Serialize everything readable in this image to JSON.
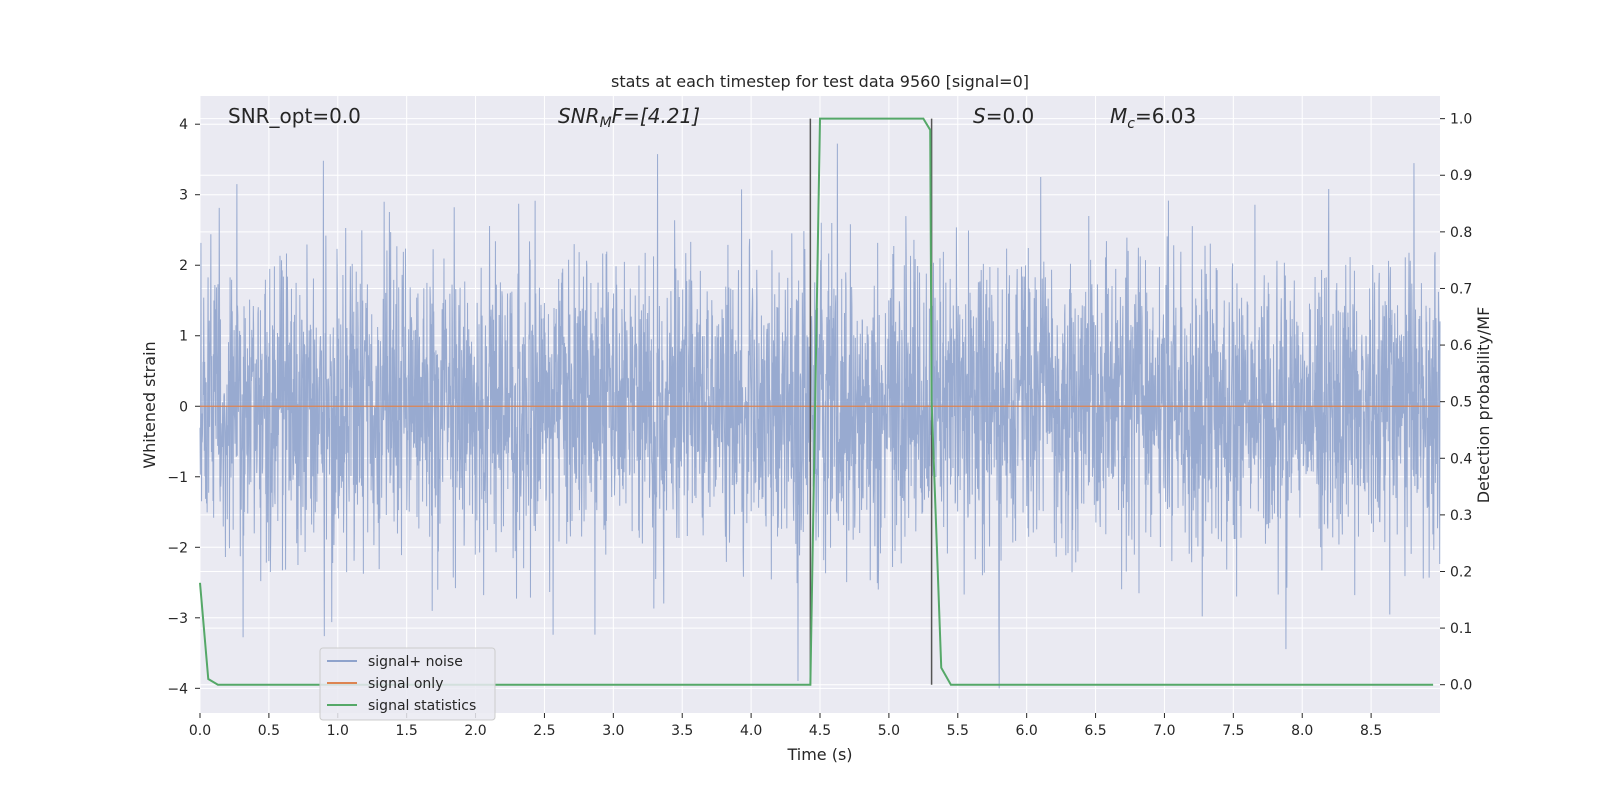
{
  "chart_data": {
    "type": "line",
    "title": "stats at each timestep for test data 9560 [signal=0]",
    "xlabel": "Time (s)",
    "ylabel": "Whitened strain",
    "ylabel_right": "Detection probability/MF",
    "xlim": [
      0.0,
      9.0
    ],
    "ylim": [
      -4.35,
      4.4
    ],
    "ylim_right": [
      -0.05,
      1.04
    ],
    "x_ticks": [
      "0.0",
      "0.5",
      "1.0",
      "1.5",
      "2.0",
      "2.5",
      "3.0",
      "3.5",
      "4.0",
      "4.5",
      "5.0",
      "5.5",
      "6.0",
      "6.5",
      "7.0",
      "7.5",
      "8.0",
      "8.5"
    ],
    "y_ticks": [
      "4",
      "3",
      "2",
      "1",
      "0",
      "−1",
      "−2",
      "−3",
      "−4"
    ],
    "y_right_ticks": [
      "1.0",
      "0.9",
      "0.8",
      "0.7",
      "0.6",
      "0.5",
      "0.4",
      "0.3",
      "0.2",
      "0.1",
      "0.0"
    ],
    "grid": true,
    "legend_position": "lower-left",
    "annotations": {
      "snr_opt": "SNR_opt=0.0",
      "snr_mf_italic": "SNR",
      "snr_mf_sub": "M",
      "snr_mf_rest": "F=[4.21]",
      "s_italic": "S",
      "s_rest": "=0.0",
      "mc_italic": "M",
      "mc_sub": "c",
      "mc_rest": "=6.03"
    },
    "vertical_lines_x": [
      4.43,
      5.31
    ],
    "series": [
      {
        "name": "signal+ noise",
        "color": "#8fa3cc",
        "axis": "left",
        "envelope_abs_max": 4.0
      },
      {
        "name": "signal only",
        "color": "#dd8452",
        "axis": "left",
        "x": [
          0.0,
          9.0
        ],
        "y": [
          0.0,
          0.0
        ]
      },
      {
        "name": "signal statistics",
        "color": "#55a868",
        "axis": "right",
        "x": [
          0.0,
          0.06,
          0.13,
          0.5,
          1.0,
          2.0,
          3.0,
          4.0,
          4.43,
          4.5,
          4.6,
          5.0,
          5.25,
          5.3,
          5.31,
          5.38,
          5.45,
          6.0,
          7.0,
          8.0,
          8.95
        ],
        "y": [
          0.18,
          0.01,
          0.0,
          0.0,
          0.0,
          0.0,
          0.0,
          0.0,
          0.0,
          1.0,
          1.0,
          1.0,
          1.0,
          0.98,
          0.5,
          0.03,
          0.0,
          0.0,
          0.0,
          0.0,
          0.0
        ]
      }
    ]
  },
  "colors": {
    "plot_background": "#eaeaf2",
    "grid": "#ffffff",
    "vline": "#555555"
  }
}
